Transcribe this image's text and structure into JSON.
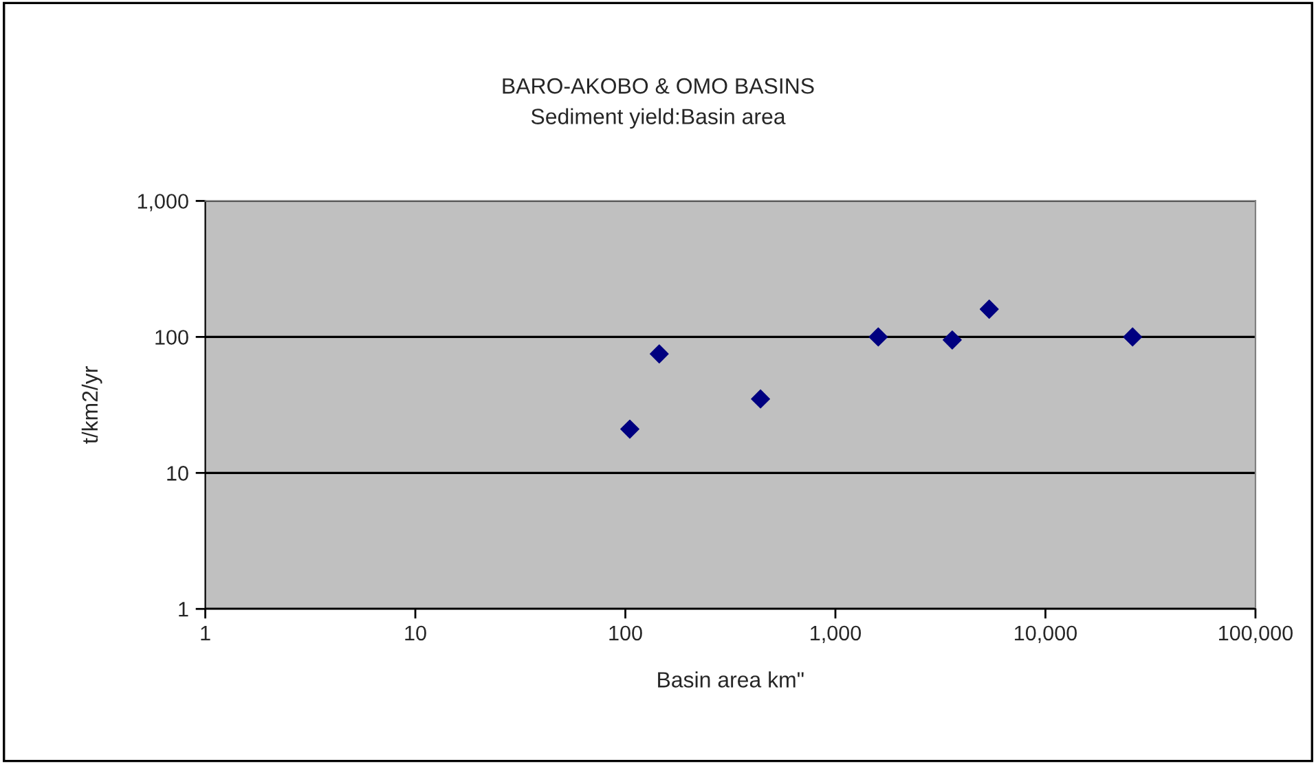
{
  "chart_data": {
    "type": "scatter",
    "title": "BARO-AKOBO & OMO BASINS",
    "subtitle": "Sediment yield:Basin area",
    "xlabel": "Basin area km\"",
    "ylabel": "t/km2/yr",
    "x": [
      105,
      145,
      440,
      1600,
      3600,
      5400,
      26000
    ],
    "series": [
      {
        "color": "#000080",
        "values": [
          21,
          75,
          35,
          100,
          95,
          160,
          100
        ]
      }
    ],
    "log": "xy",
    "xlim": [
      1,
      100000
    ],
    "ylim": [
      1,
      1000
    ],
    "xticks": [
      1,
      10,
      100,
      {
        "value": 1000,
        "label": "1,000"
      },
      {
        "value": 10000,
        "label": "10,000"
      },
      {
        "value": 100000,
        "label": "100,000"
      }
    ],
    "yticks": [
      1,
      10,
      100,
      {
        "value": 1000,
        "label": "1,000"
      }
    ],
    "grid": "y",
    "marker": "diamond"
  }
}
